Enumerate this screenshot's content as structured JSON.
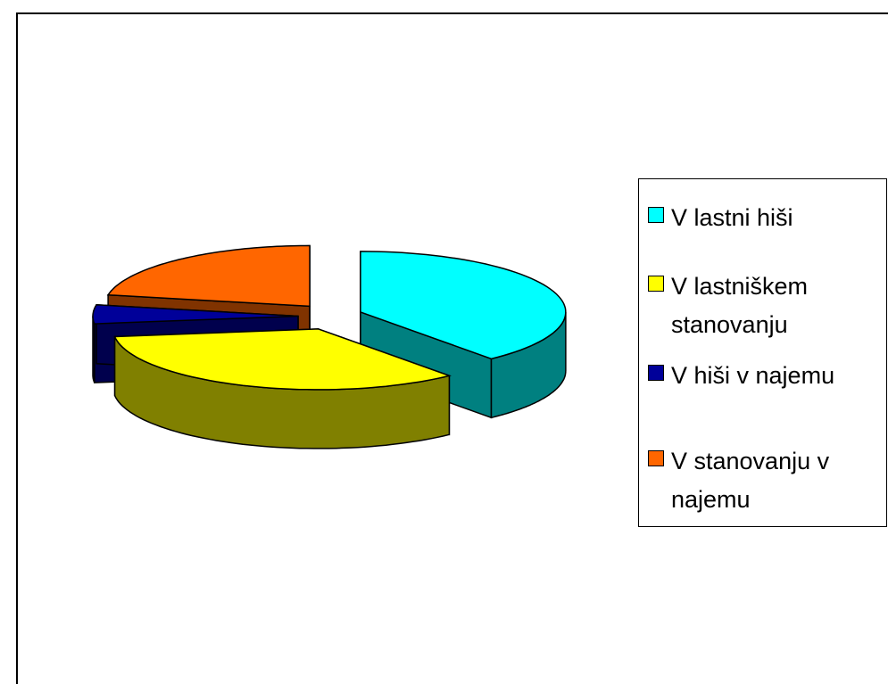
{
  "chart_data": {
    "type": "pie",
    "categories": [
      "V lastni hiši",
      "V lastniškem stanovanju",
      "V hiši v najemu",
      "V stanovanju v najemu"
    ],
    "values": [
      39,
      34,
      5,
      22
    ],
    "colors": [
      "#00ffff",
      "#ffff00",
      "#000099",
      "#ff6600"
    ],
    "legend": "right"
  }
}
